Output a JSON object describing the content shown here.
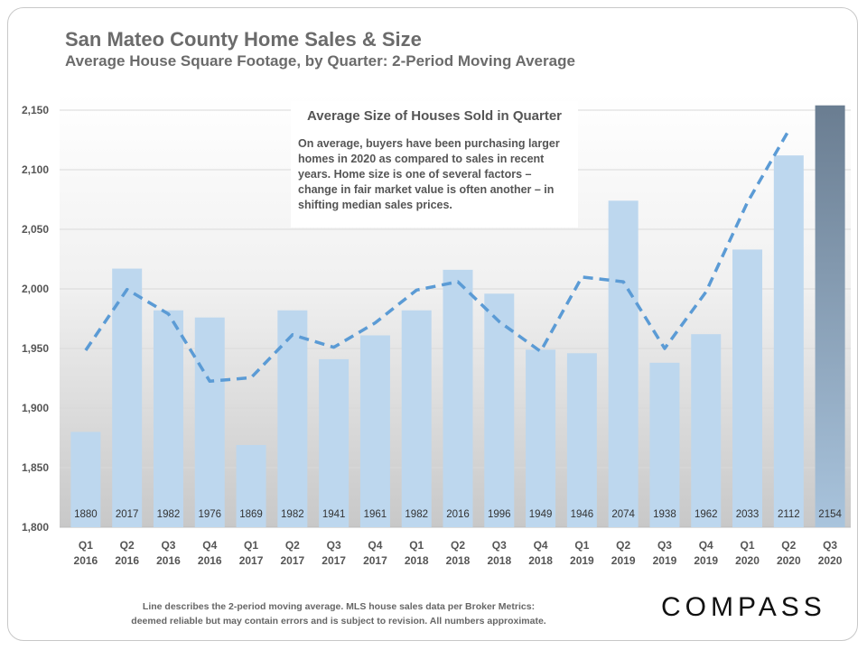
{
  "header": {
    "title": "San Mateo County Home Sales & Size",
    "subtitle": "Average House Square Footage, by Quarter: 2-Period Moving Average"
  },
  "annotation": {
    "title": "Average Size of Houses Sold in Quarter",
    "body": "On average, buyers have been purchasing larger homes in 2020 as compared to sales in recent years. Home size is one of several factors – change in fair market value is often another – in shifting median sales prices."
  },
  "footer": {
    "line1": "Line describes the 2-period moving average. MLS house sales data per Broker Metrics:",
    "line2": "deemed reliable but may contain errors and is subject to revision. All numbers approximate."
  },
  "brand": {
    "logo_text": "COMPASS"
  },
  "colors": {
    "bar": "#bdd7ee",
    "last_bar_top": "#6a7d91",
    "last_bar_bottom": "#a9c4dd",
    "line": "#5b9bd5",
    "tick_text": "#555555"
  },
  "chart_data": {
    "type": "bar",
    "categories": [
      [
        "Q1",
        "2016"
      ],
      [
        "Q2",
        "2016"
      ],
      [
        "Q3",
        "2016"
      ],
      [
        "Q4",
        "2016"
      ],
      [
        "Q1",
        "2017"
      ],
      [
        "Q2",
        "2017"
      ],
      [
        "Q3",
        "2017"
      ],
      [
        "Q4",
        "2017"
      ],
      [
        "Q1",
        "2018"
      ],
      [
        "Q2",
        "2018"
      ],
      [
        "Q3",
        "2018"
      ],
      [
        "Q4",
        "2018"
      ],
      [
        "Q1",
        "2019"
      ],
      [
        "Q2",
        "2019"
      ],
      [
        "Q3",
        "2019"
      ],
      [
        "Q4",
        "2019"
      ],
      [
        "Q1",
        "2020"
      ],
      [
        "Q2",
        "2020"
      ],
      [
        "Q3",
        "2020"
      ]
    ],
    "values": [
      1880,
      2017,
      1982,
      1976,
      1869,
      1982,
      1941,
      1961,
      1982,
      2016,
      1996,
      1949,
      1946,
      2074,
      1938,
      1962,
      2033,
      2112,
      2154
    ],
    "data_labels": [
      "1880",
      "2017",
      "1982",
      "1976",
      "1869",
      "1982",
      "1941",
      "1961",
      "1982",
      "2016",
      "1996",
      "1949",
      "1946",
      "2074",
      "1938",
      "1962",
      "2033",
      "2112",
      "2154"
    ],
    "moving_average": [
      1948.5,
      1999.5,
      1979,
      1922.5,
      1925.5,
      1961.5,
      1951,
      1971.5,
      1999,
      2006,
      1972.5,
      1947.5,
      2010,
      2006,
      1950,
      1997.5,
      2072.5,
      2133
    ],
    "ylim": [
      1800,
      2150
    ],
    "yticks": [
      1800,
      1850,
      1900,
      1950,
      2000,
      2050,
      2100,
      2150
    ],
    "ytick_labels": [
      "1,800",
      "1,850",
      "1,900",
      "1,950",
      "2,000",
      "2,050",
      "2,100",
      "2,150"
    ],
    "highlight_last_bar": true,
    "line_style": "dashed",
    "grid": "horizontal"
  }
}
